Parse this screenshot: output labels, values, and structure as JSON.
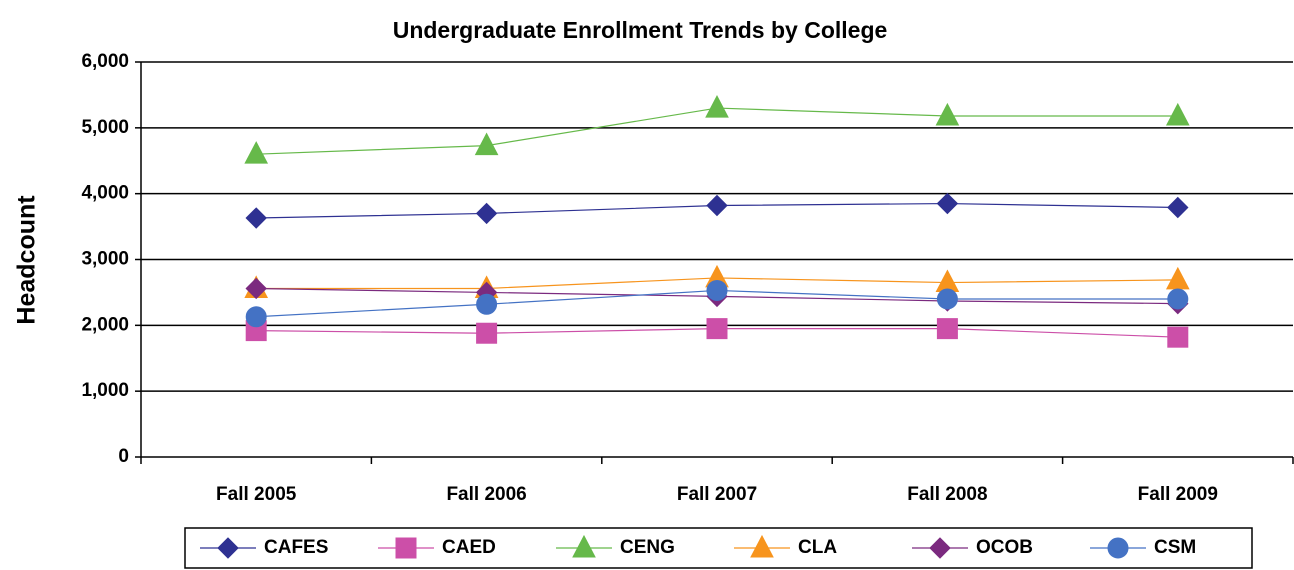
{
  "chart_data": {
    "type": "line",
    "title": "Undergraduate Enrollment Trends by College",
    "y_label": "Headcount",
    "categories": [
      "Fall 2005",
      "Fall 2006",
      "Fall 2007",
      "Fall 2008",
      "Fall 2009"
    ],
    "series": [
      {
        "name": "CAFES",
        "color": "#2e3192",
        "marker": "diamond",
        "values": [
          3630,
          3700,
          3820,
          3850,
          3790
        ]
      },
      {
        "name": "CAED",
        "color": "#cc4fa8",
        "marker": "square",
        "values": [
          1920,
          1880,
          1950,
          1950,
          1820
        ]
      },
      {
        "name": "CENG",
        "color": "#66b94a",
        "marker": "triangle",
        "values": [
          4600,
          4730,
          5300,
          5180,
          5180
        ]
      },
      {
        "name": "CLA",
        "color": "#f7941d",
        "marker": "triangle",
        "values": [
          2560,
          2560,
          2720,
          2650,
          2690
        ]
      },
      {
        "name": "OCOB",
        "color": "#7b2a7f",
        "marker": "diamond",
        "values": [
          2560,
          2500,
          2440,
          2370,
          2330
        ]
      },
      {
        "name": "CSM",
        "color": "#4472c4",
        "marker": "circle",
        "values": [
          2130,
          2320,
          2530,
          2400,
          2400
        ]
      }
    ],
    "ylim": [
      0,
      6000
    ],
    "yticks": [
      0,
      {
        "value": 1000,
        "label": "1,000"
      },
      {
        "value": 2000,
        "label": "2,000"
      },
      {
        "value": 3000,
        "label": "3,000"
      },
      {
        "value": 4000,
        "label": "4,000"
      },
      {
        "value": 5000,
        "label": "5,000"
      },
      {
        "value": 6000,
        "label": "6,000"
      }
    ],
    "grid": true,
    "legend": "bottom"
  }
}
